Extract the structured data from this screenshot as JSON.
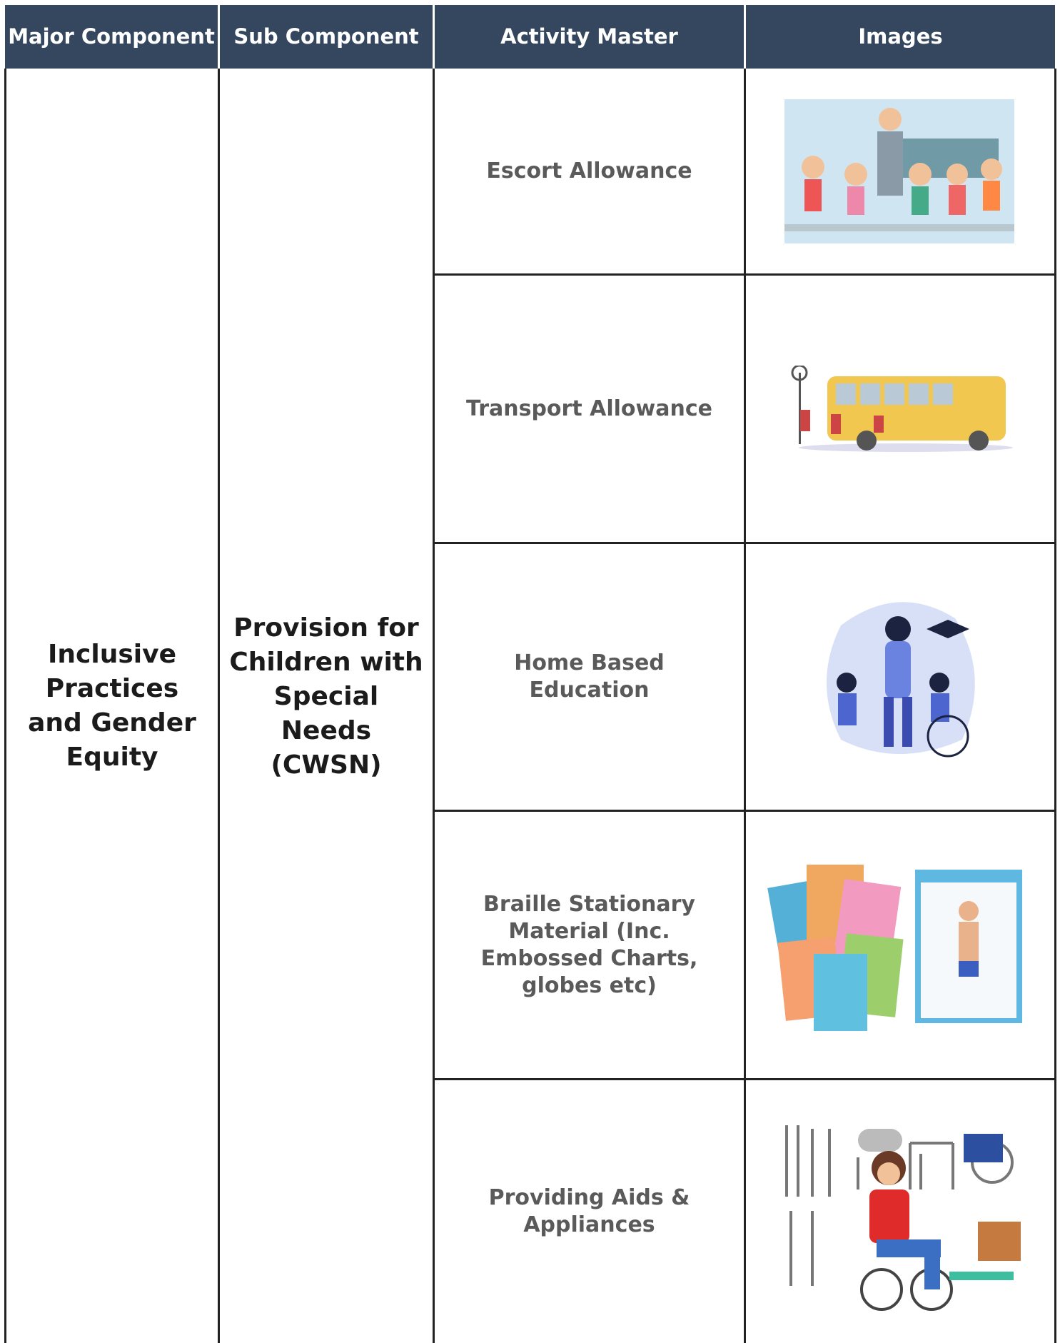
{
  "header": {
    "columns": [
      "Major Component",
      "Sub Component",
      "Activity Master",
      "Images"
    ]
  },
  "table": {
    "major_component": "Inclusive Practices and Gender Equity",
    "sub_component": "Provision for Children with Special Needs (CWSN)",
    "activities": [
      "Escort Allowance",
      "Transport Allowance",
      "Home Based Education",
      "Braille Stationary Material (Inc. Embossed Charts, globes etc)",
      "Providing Aids & Appliances"
    ]
  }
}
